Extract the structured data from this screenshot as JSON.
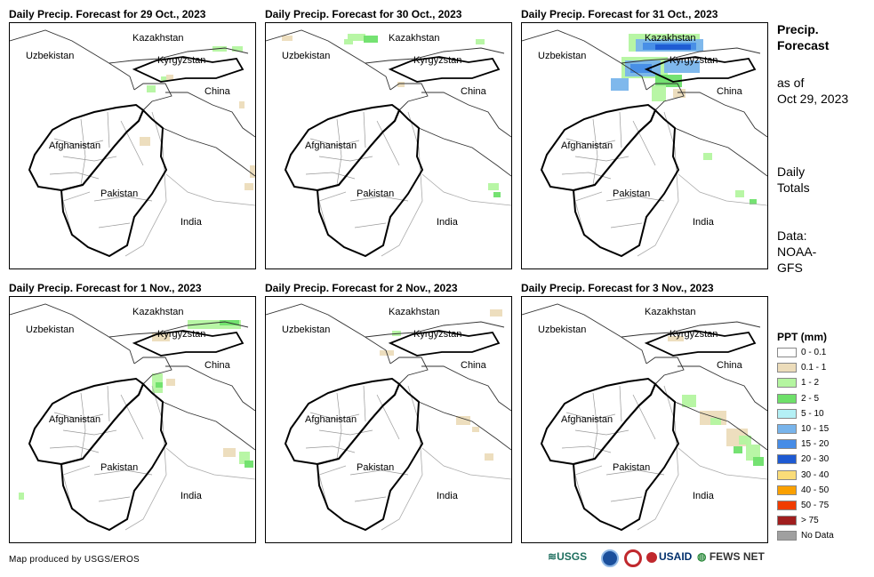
{
  "panels": [
    {
      "title": "Daily Precip. Forecast for 29 Oct., 2023"
    },
    {
      "title": "Daily Precip. Forecast for 30 Oct., 2023"
    },
    {
      "title": "Daily Precip. Forecast for 31 Oct., 2023"
    },
    {
      "title": "Daily Precip. Forecast for 1 Nov., 2023"
    },
    {
      "title": "Daily Precip. Forecast for 2 Nov., 2023"
    },
    {
      "title": "Daily Precip. Forecast for 3 Nov., 2023"
    }
  ],
  "map_labels": {
    "kazakhstan": "Kazakhstan",
    "uzbekistan": "Uzbekistan",
    "kyrgyzstan": "Kyrgyzstan",
    "china": "China",
    "afghanistan": "Afghanistan",
    "pakistan": "Pakistan",
    "india": "India"
  },
  "sidebar": {
    "title_line1": "Precip.",
    "title_line2": "Forecast",
    "asof_line1": "as of",
    "asof_line2": "Oct 29, 2023",
    "daily_line1": "Daily",
    "daily_line2": "Totals",
    "data_line1": "Data:",
    "data_line2": "NOAA-",
    "data_line3": "GFS"
  },
  "legend": {
    "title": "PPT (mm)",
    "items": [
      {
        "label": "0 - 0.1",
        "color": "#ffffff"
      },
      {
        "label": "0.1 - 1",
        "color": "#ecdcba"
      },
      {
        "label": "1 - 2",
        "color": "#b4f5a0"
      },
      {
        "label": "2 - 5",
        "color": "#6ee06a"
      },
      {
        "label": "5 - 10",
        "color": "#b4f0f5"
      },
      {
        "label": "10 - 15",
        "color": "#78b4eb"
      },
      {
        "label": "15 - 20",
        "color": "#468ce6"
      },
      {
        "label": "20 - 30",
        "color": "#1e5ad2"
      },
      {
        "label": "30 - 40",
        "color": "#fadc78"
      },
      {
        "label": "40 - 50",
        "color": "#faa000"
      },
      {
        "label": "50 - 75",
        "color": "#f03c00"
      },
      {
        "label": "> 75",
        "color": "#a01e1e"
      },
      {
        "label": "No Data",
        "color": "#a0a0a0"
      }
    ]
  },
  "footer": {
    "credit": "Map produced by USGS/EROS",
    "logos": [
      "USGS",
      "USAID",
      "FEWS NET"
    ]
  }
}
